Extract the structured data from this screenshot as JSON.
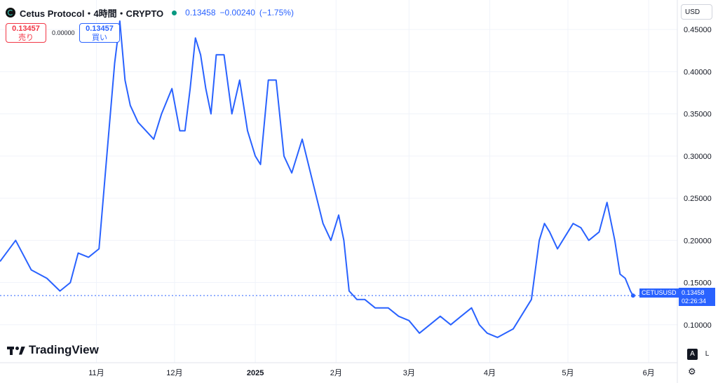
{
  "header": {
    "symbol_title": "Cetus Protocol・4時間・CRYPTO",
    "price": "0.13458",
    "change": "−0.00240",
    "change_pct": "(−1.75%)"
  },
  "trade": {
    "sell_price": "0.13457",
    "sell_label": "売り",
    "spread": "0.00000",
    "buy_price": "0.13457",
    "buy_label": "買い"
  },
  "currency_selector": "USD",
  "logo_text": "TradingView",
  "price_label": {
    "ticker": "CETUSUSD",
    "price": "0.13458",
    "countdown": "02:26:34"
  },
  "controls": {
    "auto": "A",
    "log": "L"
  },
  "colors": {
    "line": "#2962ff",
    "sell": "#f23645",
    "buy": "#2962ff",
    "live_dot": "#089981",
    "grid": "#f0f3fa"
  },
  "chart_data": {
    "type": "line",
    "series": [
      {
        "name": "",
        "x": [
          "2024-09-25",
          "2024-10-01",
          "2024-10-07",
          "2024-10-13",
          "2024-10-18",
          "2024-10-22",
          "2024-10-25",
          "2024-10-29",
          "2024-11-02",
          "2024-11-05",
          "2024-11-08",
          "2024-11-10",
          "2024-11-12",
          "2024-11-14",
          "2024-11-17",
          "2024-11-20",
          "2024-11-23",
          "2024-11-26",
          "2024-11-30",
          "2024-12-03",
          "2024-12-05",
          "2024-12-07",
          "2024-12-09",
          "2024-12-11",
          "2024-12-13",
          "2024-12-15",
          "2024-12-17",
          "2024-12-20",
          "2024-12-23",
          "2024-12-26",
          "2024-12-29",
          "2025-01-01",
          "2025-01-03",
          "2025-01-06",
          "2025-01-09",
          "2025-01-12",
          "2025-01-15",
          "2025-01-19",
          "2025-01-23",
          "2025-01-27",
          "2025-01-30",
          "2025-02-02",
          "2025-02-04",
          "2025-02-06",
          "2025-02-09",
          "2025-02-12",
          "2025-02-16",
          "2025-02-21",
          "2025-02-25",
          "2025-03-01",
          "2025-03-05",
          "2025-03-09",
          "2025-03-13",
          "2025-03-17",
          "2025-03-21",
          "2025-03-25",
          "2025-03-28",
          "2025-03-31",
          "2025-04-04",
          "2025-04-07",
          "2025-04-10",
          "2025-04-13",
          "2025-04-17",
          "2025-04-20",
          "2025-04-22",
          "2025-04-24",
          "2025-04-27",
          "2025-04-30",
          "2025-05-03",
          "2025-05-06",
          "2025-05-09",
          "2025-05-13",
          "2025-05-16",
          "2025-05-19",
          "2025-05-21",
          "2025-05-23",
          "2025-05-25",
          "2025-05-26"
        ],
        "values": [
          0.175,
          0.2,
          0.165,
          0.155,
          0.14,
          0.15,
          0.185,
          0.18,
          0.19,
          0.3,
          0.41,
          0.46,
          0.39,
          0.36,
          0.34,
          0.33,
          0.32,
          0.35,
          0.38,
          0.33,
          0.33,
          0.38,
          0.44,
          0.42,
          0.38,
          0.35,
          0.42,
          0.42,
          0.35,
          0.39,
          0.33,
          0.3,
          0.29,
          0.39,
          0.39,
          0.3,
          0.28,
          0.32,
          0.27,
          0.22,
          0.2,
          0.23,
          0.2,
          0.14,
          0.13,
          0.13,
          0.12,
          0.12,
          0.11,
          0.105,
          0.09,
          0.1,
          0.11,
          0.1,
          0.11,
          0.12,
          0.1,
          0.09,
          0.085,
          0.09,
          0.095,
          0.11,
          0.13,
          0.2,
          0.22,
          0.21,
          0.19,
          0.205,
          0.22,
          0.215,
          0.2,
          0.21,
          0.245,
          0.2,
          0.16,
          0.155,
          0.14,
          0.1346
        ]
      }
    ],
    "xticks": [
      "11月",
      "12月",
      "2025",
      "2月",
      "3月",
      "4月",
      "5月",
      "6月"
    ],
    "yticks": [
      "0.10000",
      "0.15000",
      "0.20000",
      "0.25000",
      "0.30000",
      "0.35000",
      "0.40000",
      "0.45000"
    ],
    "ylim": [
      0.055,
      0.485
    ],
    "xlim": [
      "2024-09-25",
      "2025-06-12"
    ],
    "grid": true,
    "last_price_line": 0.13458
  }
}
